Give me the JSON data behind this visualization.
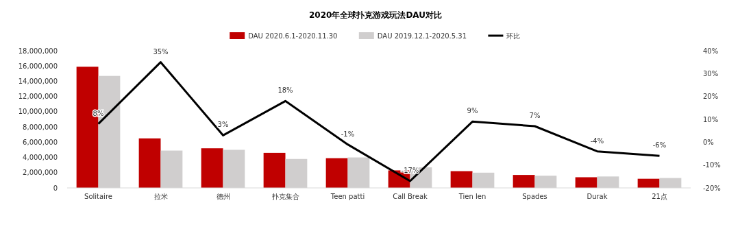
{
  "chart_data": {
    "type": "bar",
    "title": "2020年全球扑克游戏玩法DAU对比",
    "categories": [
      "Solitaire",
      "拉米",
      "德州",
      "扑克集合",
      "Teen patti",
      "Call Break",
      "Tien len",
      "Spades",
      "Durak",
      "21点"
    ],
    "series": [
      {
        "name": "DAU 2020.6.1-2020.11.30",
        "color": "#c00000",
        "values": [
          15900000,
          6500000,
          5200000,
          4600000,
          3900000,
          2300000,
          2200000,
          1700000,
          1400000,
          1200000
        ]
      },
      {
        "name": "DAU 2019.12.1-2020.5.31",
        "color": "#d0cece",
        "values": [
          14700000,
          4900000,
          5000000,
          3800000,
          4000000,
          2700000,
          2000000,
          1600000,
          1500000,
          1300000
        ]
      },
      {
        "name": "环比",
        "type": "line",
        "axis": "y2",
        "color": "#000000",
        "values": [
          8,
          35,
          3,
          18,
          -1,
          -17,
          9,
          7,
          -4,
          -6
        ],
        "value_labels": [
          "8%",
          "35%",
          "3%",
          "18%",
          "-1%",
          "-17%",
          "9%",
          "7%",
          "-4%",
          "-6%"
        ]
      }
    ],
    "ylim": [
      0,
      18000000
    ],
    "yticks": [
      {
        "value": 0,
        "label": "0"
      },
      {
        "value": 2000000,
        "label": "2,000,000"
      },
      {
        "value": 4000000,
        "label": "4,000,000"
      },
      {
        "value": 6000000,
        "label": "6,000,000"
      },
      {
        "value": 8000000,
        "label": "8,000,000"
      },
      {
        "value": 10000000,
        "label": "10,000,000"
      },
      {
        "value": 12000000,
        "label": "12,000,000"
      },
      {
        "value": 14000000,
        "label": "14,000,000"
      },
      {
        "value": 16000000,
        "label": "16,000,000"
      },
      {
        "value": 18000000,
        "label": "18,000,000"
      }
    ],
    "y2lim": [
      -20,
      40
    ],
    "y2ticks": [
      {
        "value": -20,
        "label": "-20%"
      },
      {
        "value": -10,
        "label": "-10%"
      },
      {
        "value": 0,
        "label": "0%"
      },
      {
        "value": 10,
        "label": "10%"
      },
      {
        "value": 20,
        "label": "20%"
      },
      {
        "value": 30,
        "label": "30%"
      },
      {
        "value": 40,
        "label": "40%"
      }
    ],
    "legend": "top",
    "grid": false
  }
}
